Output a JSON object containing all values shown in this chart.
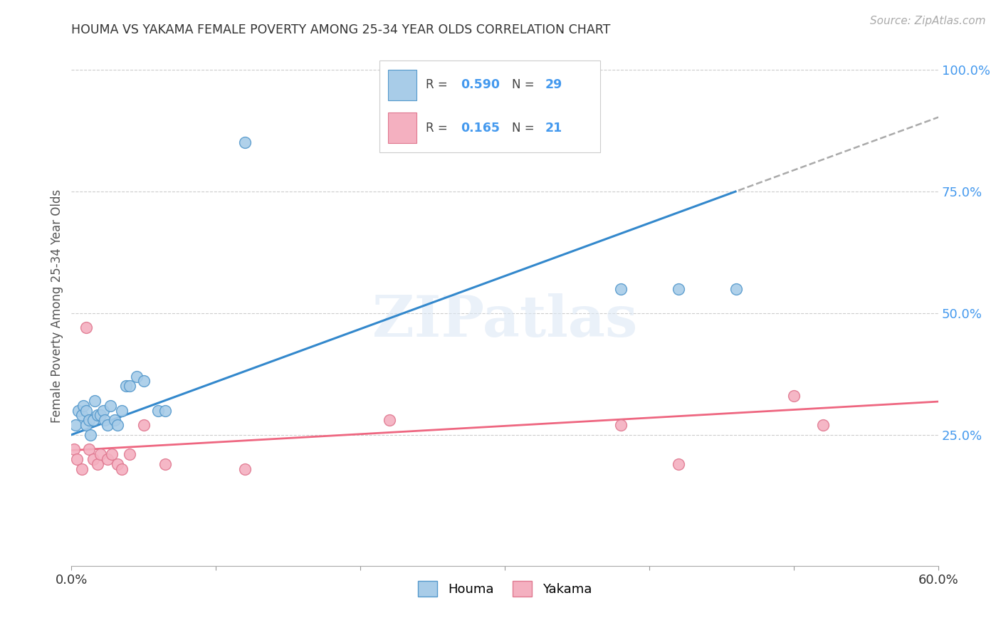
{
  "title": "HOUMA VS YAKAMA FEMALE POVERTY AMONG 25-34 YEAR OLDS CORRELATION CHART",
  "source": "Source: ZipAtlas.com",
  "ylabel": "Female Poverty Among 25-34 Year Olds",
  "xlim": [
    0.0,
    0.6
  ],
  "ylim": [
    -0.02,
    1.05
  ],
  "xticks": [
    0.0,
    0.1,
    0.2,
    0.3,
    0.4,
    0.5,
    0.6
  ],
  "xticklabels": [
    "0.0%",
    "",
    "",
    "",
    "",
    "",
    "60.0%"
  ],
  "yticks_right": [
    0.0,
    0.25,
    0.5,
    0.75,
    1.0
  ],
  "yticklabels_right": [
    "",
    "25.0%",
    "50.0%",
    "75.0%",
    "100.0%"
  ],
  "houma_R": 0.59,
  "houma_N": 29,
  "yakama_R": 0.165,
  "yakama_N": 21,
  "houma_color": "#a8cce8",
  "yakama_color": "#f4b0c0",
  "houma_edge_color": "#5599cc",
  "yakama_edge_color": "#e07890",
  "houma_line_color": "#3388cc",
  "yakama_line_color": "#ee6680",
  "watermark": "ZIPatlas",
  "houma_x": [
    0.003,
    0.005,
    0.007,
    0.008,
    0.01,
    0.01,
    0.012,
    0.013,
    0.015,
    0.016,
    0.018,
    0.02,
    0.022,
    0.023,
    0.025,
    0.027,
    0.03,
    0.032,
    0.035,
    0.038,
    0.04,
    0.045,
    0.05,
    0.06,
    0.065,
    0.12,
    0.38,
    0.42,
    0.46
  ],
  "houma_y": [
    0.27,
    0.3,
    0.29,
    0.31,
    0.3,
    0.27,
    0.28,
    0.25,
    0.28,
    0.32,
    0.29,
    0.29,
    0.3,
    0.28,
    0.27,
    0.31,
    0.28,
    0.27,
    0.3,
    0.35,
    0.35,
    0.37,
    0.36,
    0.3,
    0.3,
    0.85,
    0.55,
    0.55,
    0.55
  ],
  "yakama_x": [
    0.002,
    0.004,
    0.007,
    0.01,
    0.012,
    0.015,
    0.018,
    0.02,
    0.025,
    0.028,
    0.032,
    0.035,
    0.04,
    0.05,
    0.065,
    0.12,
    0.22,
    0.38,
    0.42,
    0.5,
    0.52
  ],
  "yakama_y": [
    0.22,
    0.2,
    0.18,
    0.47,
    0.22,
    0.2,
    0.19,
    0.21,
    0.2,
    0.21,
    0.19,
    0.18,
    0.21,
    0.27,
    0.19,
    0.18,
    0.28,
    0.27,
    0.19,
    0.33,
    0.27
  ]
}
